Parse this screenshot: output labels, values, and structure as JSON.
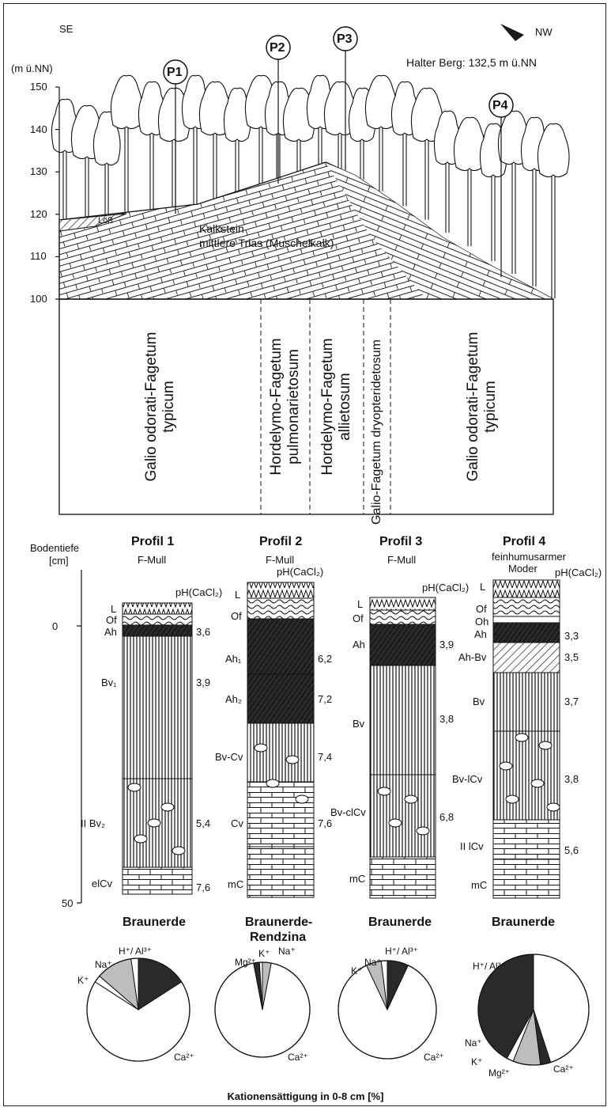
{
  "header": {
    "dir_left": "SE",
    "dir_right": "NW",
    "y_unit": "(m ü.NN)",
    "summit": "Halter Berg: 132,5 m ü.NN",
    "y_ticks": [
      "150",
      "140",
      "130",
      "120",
      "110",
      "100"
    ]
  },
  "points": [
    "P1",
    "P2",
    "P3",
    "P4"
  ],
  "geology": {
    "loess": "Löß",
    "rock_line1": "Kalkstein",
    "rock_line2": "mittlere Trias (Muschelkalk)"
  },
  "plant_communities": [
    {
      "line1": "Galio odorati-Fagetum",
      "line2": "typicum"
    },
    {
      "line1": "Hordelymo-Fagetum",
      "line2": "pulmonarietosum"
    },
    {
      "line1": "Hordelymo-Fagetum",
      "line2": "allietosum"
    },
    {
      "line1": "Galio-Fagetum dryopteridetosum",
      "line2": ""
    },
    {
      "line1": "Galio odorati-Fagetum",
      "line2": "typicum"
    }
  ],
  "depth_axis": {
    "label1": "Bodentiefe",
    "label2": "[cm]",
    "tick_0": "0",
    "tick_50": "50"
  },
  "profiles": [
    {
      "title": "Profil 1",
      "humus": "F-Mull",
      "ph_label": "pH(CaCl₂)",
      "horizons": [
        {
          "name": "L",
          "ph": ""
        },
        {
          "name": "Of",
          "ph": ""
        },
        {
          "name": "Ah",
          "ph": "3,6"
        },
        {
          "name": "Bv₁",
          "ph": "3,9"
        },
        {
          "name": "II Bv₂",
          "ph": "5,4"
        },
        {
          "name": "elCv",
          "ph": "7,6"
        }
      ],
      "soil": "Braunerde",
      "soil2": ""
    },
    {
      "title": "Profil 2",
      "humus": "F-Mull",
      "ph_label": "pH(CaCl₂)",
      "horizons": [
        {
          "name": "L",
          "ph": ""
        },
        {
          "name": "Of",
          "ph": ""
        },
        {
          "name": "Ah₁",
          "ph": "6,2"
        },
        {
          "name": "Ah₂",
          "ph": "7,2"
        },
        {
          "name": "Bv-Cv",
          "ph": "7,4"
        },
        {
          "name": "Cv",
          "ph": "7,6"
        },
        {
          "name": "mC",
          "ph": ""
        }
      ],
      "soil": "Braunerde-",
      "soil2": "Rendzina"
    },
    {
      "title": "Profil 3",
      "humus": "F-Mull",
      "ph_label": "pH(CaCl₂)",
      "horizons": [
        {
          "name": "L",
          "ph": ""
        },
        {
          "name": "Of",
          "ph": ""
        },
        {
          "name": "Ah",
          "ph": "3,9"
        },
        {
          "name": "Bv",
          "ph": "3,8"
        },
        {
          "name": "Bv-clCv",
          "ph": "6,8"
        },
        {
          "name": "mC",
          "ph": ""
        }
      ],
      "soil": "Braunerde",
      "soil2": ""
    },
    {
      "title": "Profil 4",
      "humus": "feinhumusarmer",
      "humus2": "Moder",
      "ph_label": "pH(CaCl₂)",
      "horizons": [
        {
          "name": "L",
          "ph": ""
        },
        {
          "name": "Of",
          "ph": ""
        },
        {
          "name": "Oh",
          "ph": ""
        },
        {
          "name": "Ah",
          "ph": "3,3"
        },
        {
          "name": "Ah-Bv",
          "ph": "3,5"
        },
        {
          "name": "Bv",
          "ph": "3,7"
        },
        {
          "name": "Bv-lCv",
          "ph": "3,8"
        },
        {
          "name": "II lCv",
          "ph": "5,6"
        },
        {
          "name": "mC",
          "ph": ""
        }
      ],
      "soil": "Braunerde",
      "soil2": ""
    }
  ],
  "pies": {
    "labels": {
      "p1": [
        "H⁺/ Al³⁺",
        "Na⁺",
        "K⁺",
        "Ca²⁺"
      ],
      "p2": [
        "Mg²⁺",
        "K⁺",
        "Na⁺",
        "Ca²⁺"
      ],
      "p3": [
        "Na⁺",
        "H⁺/ Al³⁺",
        "K⁺",
        "Ca²⁺"
      ],
      "p4": [
        "H⁺/ Al³⁺",
        "Na⁺",
        "K⁺",
        "Mg²⁺",
        "Ca²⁺"
      ]
    },
    "caption": "Kationensättigung in 0-8 cm [%]"
  },
  "colors": {
    "ink": "#111111",
    "dark": "#2a2a2a",
    "grey": "#bdbdbd",
    "paper": "#ffffff"
  }
}
